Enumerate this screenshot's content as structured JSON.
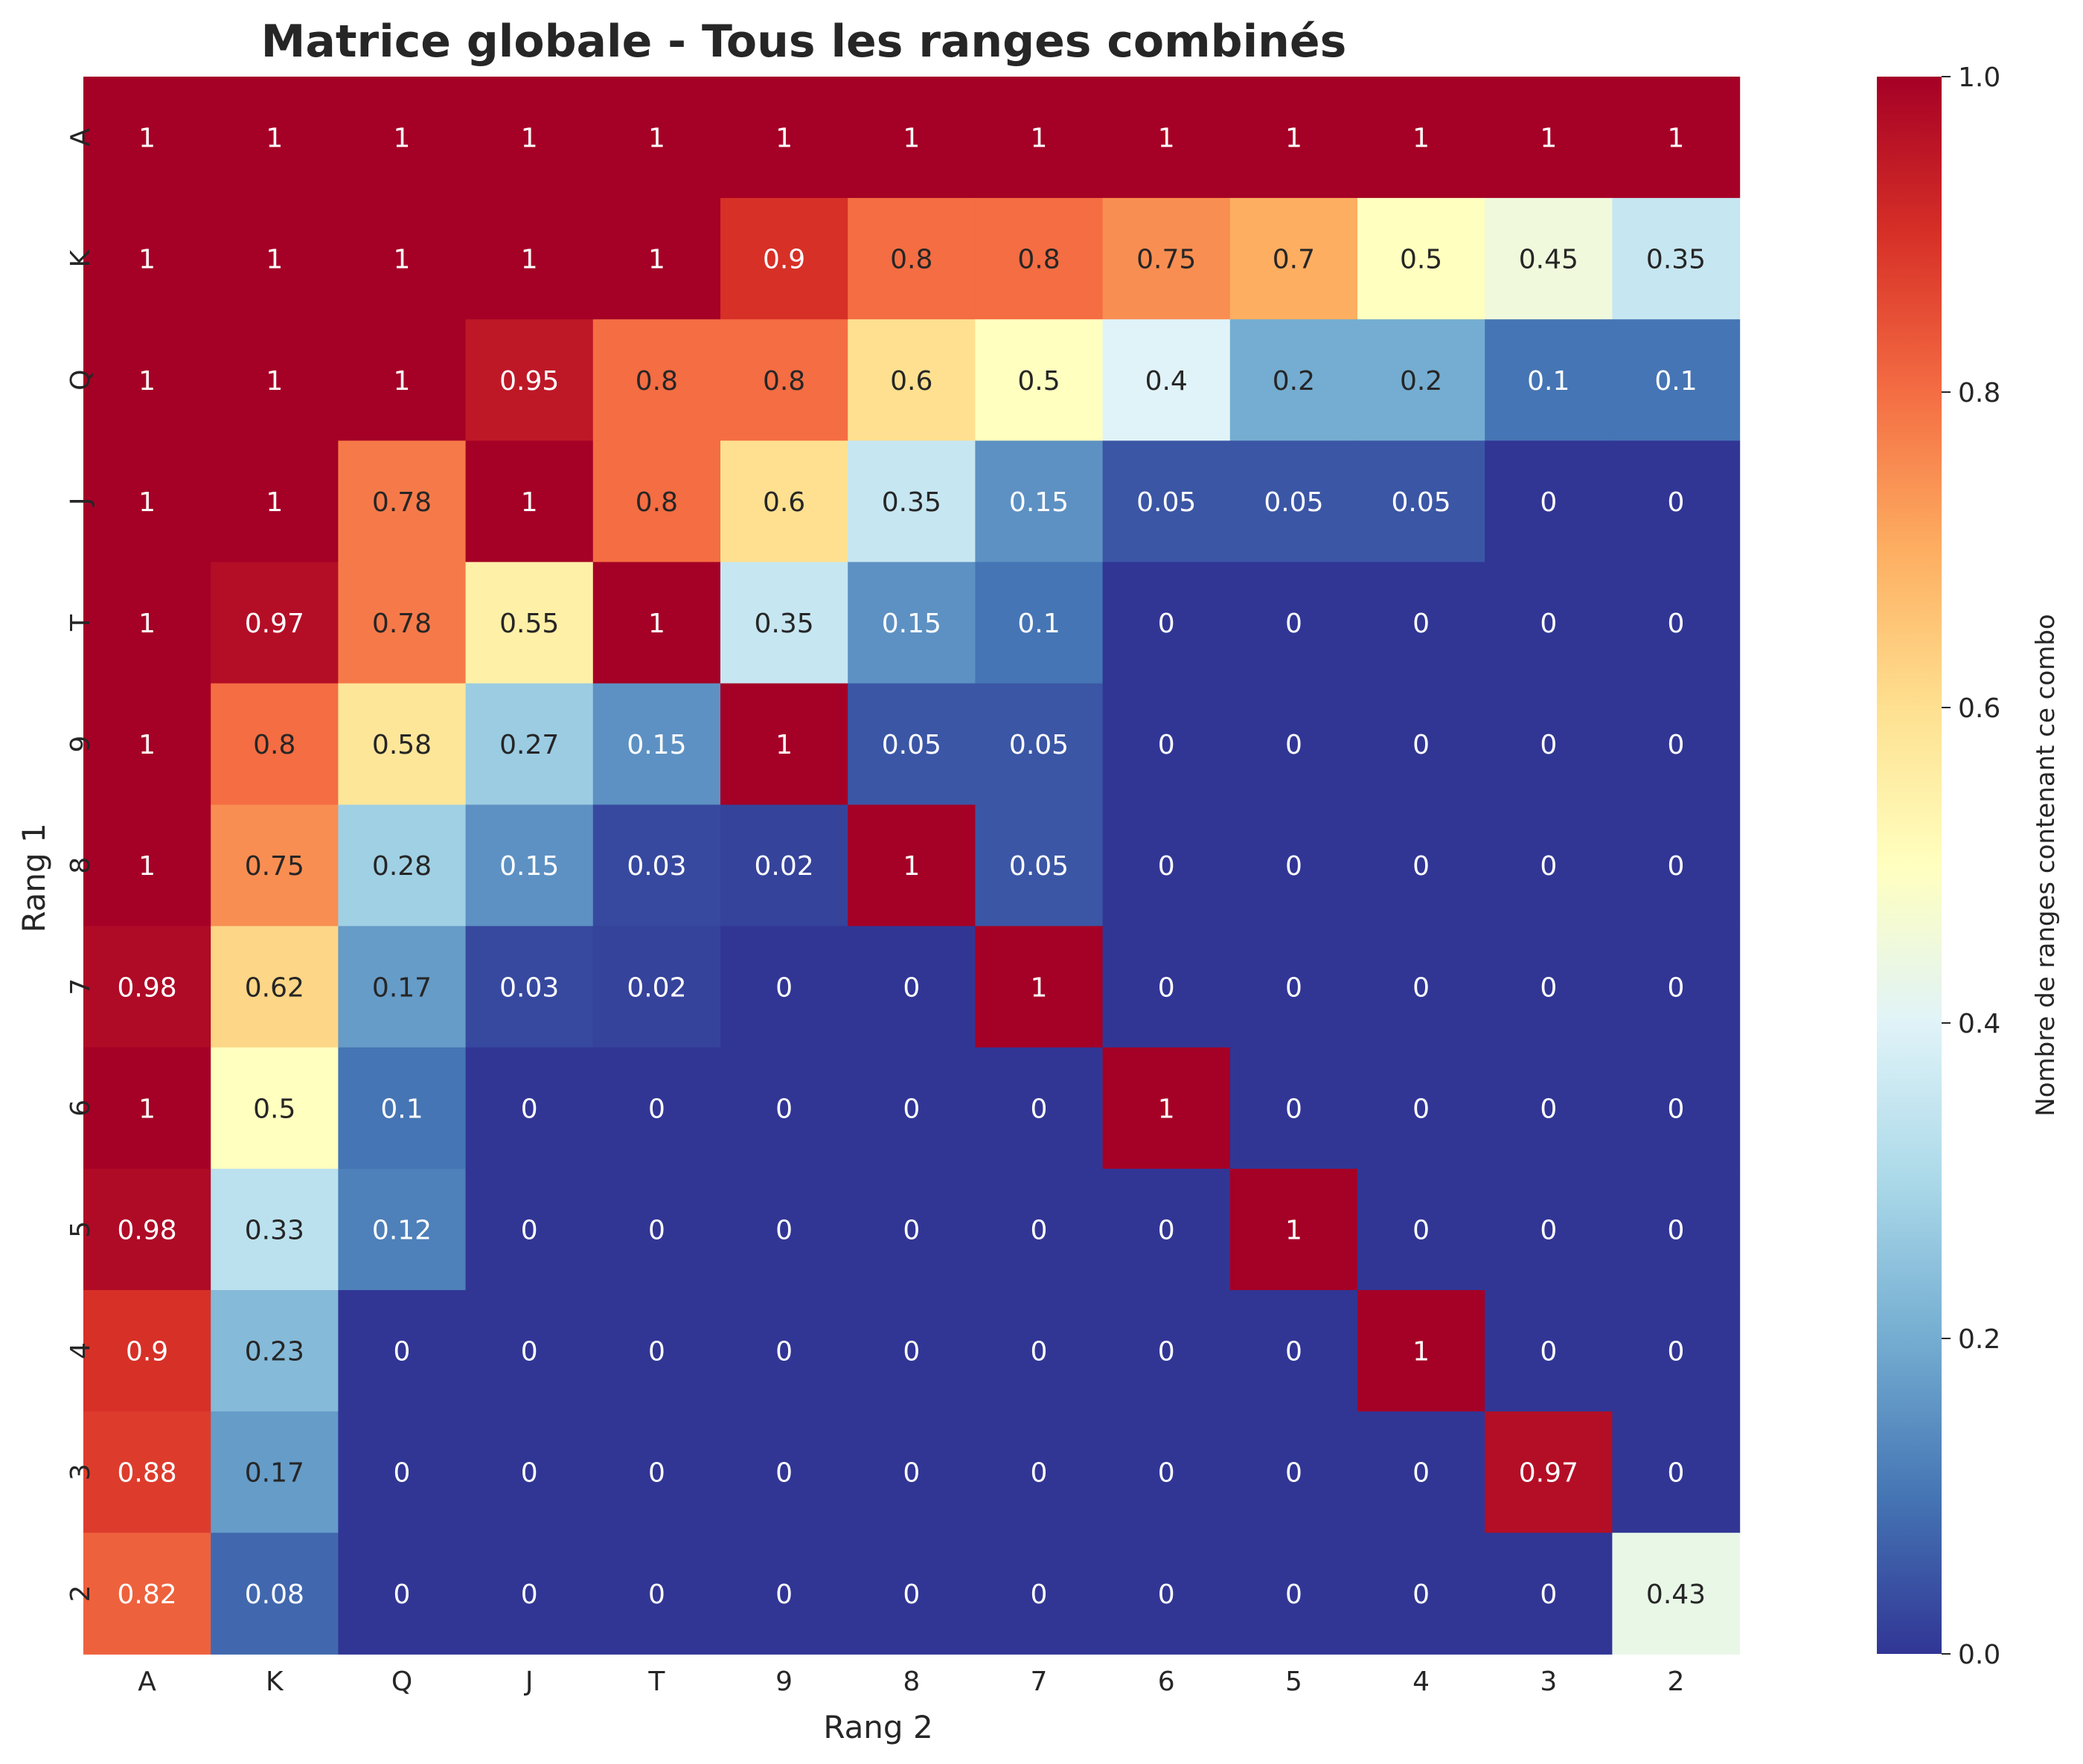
{
  "chart_data": {
    "type": "heatmap",
    "title": "Matrice globale - Tous les ranges combinés",
    "xlabel": "Rang 2",
    "ylabel": "Rang 1",
    "x_categories": [
      "A",
      "K",
      "Q",
      "J",
      "T",
      "9",
      "8",
      "7",
      "6",
      "5",
      "4",
      "3",
      "2"
    ],
    "y_categories": [
      "A",
      "K",
      "Q",
      "J",
      "T",
      "9",
      "8",
      "7",
      "6",
      "5",
      "4",
      "3",
      "2"
    ],
    "values": [
      [
        1,
        1,
        1,
        1,
        1,
        1,
        1,
        1,
        1,
        1,
        1,
        1,
        1
      ],
      [
        1,
        1,
        1,
        1,
        1,
        0.9,
        0.8,
        0.8,
        0.75,
        0.7,
        0.5,
        0.45,
        0.35
      ],
      [
        1,
        1,
        1,
        0.95,
        0.8,
        0.8,
        0.6,
        0.5,
        0.4,
        0.2,
        0.2,
        0.1,
        0.1
      ],
      [
        1,
        1,
        0.78,
        1,
        0.8,
        0.6,
        0.35,
        0.15,
        0.05,
        0.05,
        0.05,
        0,
        0
      ],
      [
        1,
        0.97,
        0.78,
        0.55,
        1,
        0.35,
        0.15,
        0.1,
        0,
        0,
        0,
        0,
        0
      ],
      [
        1,
        0.8,
        0.58,
        0.27,
        0.15,
        1,
        0.05,
        0.05,
        0,
        0,
        0,
        0,
        0
      ],
      [
        1,
        0.75,
        0.28,
        0.15,
        0.03,
        0.02,
        1,
        0.05,
        0,
        0,
        0,
        0,
        0
      ],
      [
        0.98,
        0.62,
        0.17,
        0.03,
        0.02,
        0,
        0,
        1,
        0,
        0,
        0,
        0,
        0
      ],
      [
        1,
        0.5,
        0.1,
        0,
        0,
        0,
        0,
        0,
        1,
        0,
        0,
        0,
        0
      ],
      [
        0.98,
        0.33,
        0.12,
        0,
        0,
        0,
        0,
        0,
        0,
        1,
        0,
        0,
        0
      ],
      [
        0.9,
        0.23,
        0,
        0,
        0,
        0,
        0,
        0,
        0,
        0,
        1,
        0,
        0
      ],
      [
        0.88,
        0.17,
        0,
        0,
        0,
        0,
        0,
        0,
        0,
        0,
        0,
        0.97,
        0
      ],
      [
        0.82,
        0.08,
        0,
        0,
        0,
        0,
        0,
        0,
        0,
        0,
        0,
        0,
        0.43
      ]
    ],
    "annotated": true,
    "colormap": "RdYlBu_r",
    "vmin": 0,
    "vmax": 1,
    "colorbar": {
      "label": "Nombre de ranges contenant ce combo",
      "ticks": [
        "0.0",
        "0.2",
        "0.4",
        "0.6",
        "0.8",
        "1.0"
      ],
      "tick_values": [
        0,
        0.2,
        0.4,
        0.6,
        0.8,
        1.0
      ]
    },
    "grid": false,
    "legend": "none"
  }
}
